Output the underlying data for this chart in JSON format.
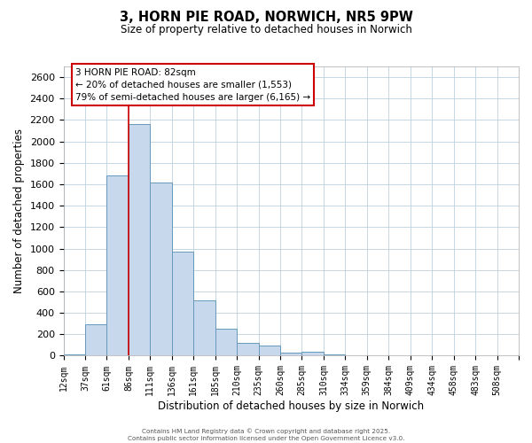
{
  "title_line1": "3, HORN PIE ROAD, NORWICH, NR5 9PW",
  "title_line2": "Size of property relative to detached houses in Norwich",
  "xlabel": "Distribution of detached houses by size in Norwich",
  "ylabel": "Number of detached properties",
  "bar_color": "#c8d8ec",
  "bar_edge_color": "#6699bb",
  "background_color": "#ffffff",
  "grid_color": "#bdd0df",
  "bins": [
    "12sqm",
    "37sqm",
    "61sqm",
    "86sqm",
    "111sqm",
    "136sqm",
    "161sqm",
    "185sqm",
    "210sqm",
    "235sqm",
    "260sqm",
    "285sqm",
    "310sqm",
    "334sqm",
    "359sqm",
    "384sqm",
    "409sqm",
    "434sqm",
    "458sqm",
    "483sqm",
    "508sqm"
  ],
  "values": [
    15,
    295,
    1680,
    2160,
    1620,
    975,
    520,
    255,
    120,
    95,
    32,
    40,
    10,
    5,
    4,
    4,
    3,
    2,
    2,
    2,
    2
  ],
  "ylim": [
    0,
    2700
  ],
  "yticks": [
    0,
    200,
    400,
    600,
    800,
    1000,
    1200,
    1400,
    1600,
    1800,
    2000,
    2200,
    2400,
    2600
  ],
  "property_line_x": 3.0,
  "property_line_color": "#cc0000",
  "annotation_title": "3 HORN PIE ROAD: 82sqm",
  "annotation_line1": "← 20% of detached houses are smaller (1,553)",
  "annotation_line2": "79% of semi-detached houses are larger (6,165) →",
  "annotation_box_color": "#ffffff",
  "annotation_box_edge": "#cc0000",
  "footer_line1": "Contains HM Land Registry data © Crown copyright and database right 2025.",
  "footer_line2": "Contains public sector information licensed under the Open Government Licence v3.0."
}
